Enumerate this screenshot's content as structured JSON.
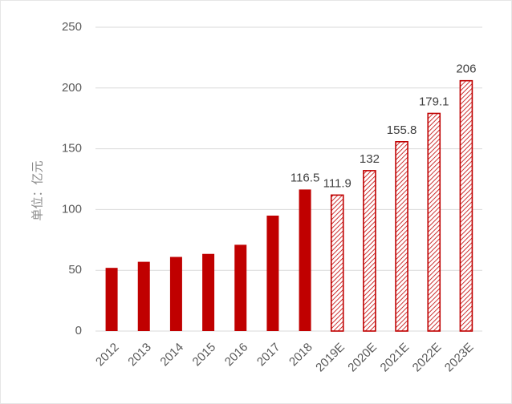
{
  "chart_data": {
    "type": "bar",
    "title": "",
    "xlabel": "",
    "ylabel": "单位：亿元",
    "ylim": [
      0,
      250
    ],
    "yticks": [
      0,
      50,
      100,
      150,
      200,
      250
    ],
    "grid": true,
    "legend": "none",
    "colors": {
      "actual": "#c00000",
      "estimate_border": "#c00000",
      "gridline": "#d9d9d9"
    },
    "categories": [
      "2012",
      "2013",
      "2014",
      "2015",
      "2016",
      "2017",
      "2018",
      "2019E",
      "2020E",
      "2021E",
      "2022E",
      "2023E"
    ],
    "values": [
      52,
      57,
      61,
      63.5,
      71,
      95,
      116.5,
      111.9,
      132,
      155.8,
      179.1,
      206
    ],
    "estimate": [
      false,
      false,
      false,
      false,
      false,
      false,
      false,
      true,
      true,
      true,
      true,
      true
    ],
    "data_labels": [
      "",
      "",
      "",
      "",
      "",
      "",
      "116.5",
      "111.9",
      "132",
      "155.8",
      "179.1",
      "206"
    ]
  }
}
